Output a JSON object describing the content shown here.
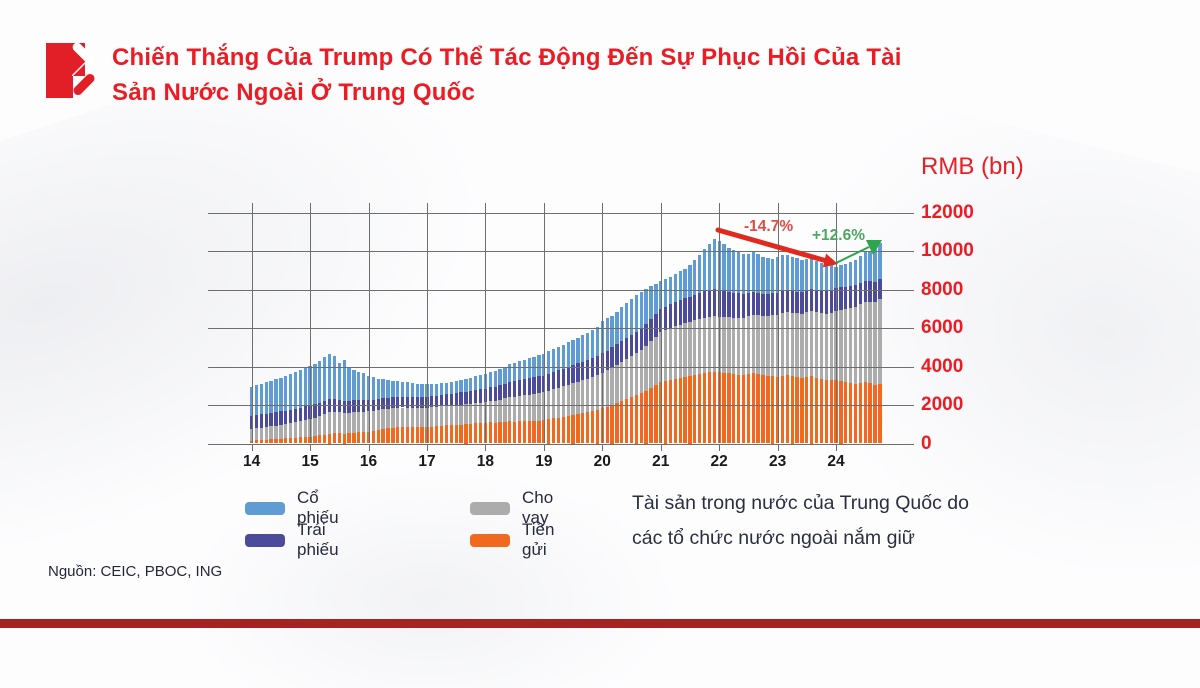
{
  "header": {
    "title_line1": "Chiến Thắng Của Trump Có Thể Tác Động Đến Sự Phục Hồi Của Tài",
    "title_line2": "Sản Nước Ngoài Ở Trung Quốc"
  },
  "colors": {
    "title_red": "#EC1C24",
    "axis_label_red": "#EC1C24",
    "stocks_blue": "#5E9CD3",
    "bonds_purple": "#4B4A9B",
    "loans_gray": "#ACACAC",
    "deposits_orange": "#F1691F",
    "decline_arrow": "#E02A1E",
    "rise_arrow": "#2FA44D",
    "footer_red": "#A32422"
  },
  "chart_data": {
    "type": "bar",
    "stacked": true,
    "title": "RMB (bn)",
    "ylabel": "RMB (bn)",
    "xlabel": "",
    "ylim": [
      0,
      12000
    ],
    "grid": true,
    "y_ticks": [
      0,
      2000,
      4000,
      6000,
      8000,
      10000,
      12000
    ],
    "x_tick_labels": [
      "14",
      "15",
      "16",
      "17",
      "18",
      "19",
      "20",
      "21",
      "22",
      "23",
      "24"
    ],
    "frequency": "monthly",
    "period_start": "2014-01",
    "period_end": "2024-10",
    "annotations": {
      "decline_label": "-14.7%",
      "rise_label": "+12.6%"
    },
    "series": [
      {
        "name": "Tiền gửi",
        "color": "#F1691F",
        "values": [
          150,
          165,
          180,
          200,
          215,
          230,
          245,
          260,
          280,
          300,
          320,
          340,
          360,
          390,
          420,
          460,
          500,
          520,
          540,
          500,
          530,
          560,
          580,
          600,
          620,
          650,
          700,
          740,
          780,
          820,
          840,
          860,
          850,
          840,
          850,
          860,
          870,
          880,
          900,
          920,
          940,
          950,
          960,
          980,
          1000,
          1020,
          1040,
          1060,
          1080,
          1100,
          1090,
          1110,
          1130,
          1150,
          1140,
          1160,
          1170,
          1160,
          1180,
          1190,
          1200,
          1250,
          1300,
          1350,
          1400,
          1450,
          1500,
          1550,
          1600,
          1650,
          1700,
          1750,
          1820,
          1900,
          2000,
          2100,
          2200,
          2300,
          2400,
          2500,
          2600,
          2750,
          2900,
          3050,
          3200,
          3250,
          3300,
          3350,
          3400,
          3450,
          3500,
          3550,
          3600,
          3650,
          3700,
          3740,
          3720,
          3680,
          3650,
          3600,
          3580,
          3550,
          3600,
          3650,
          3600,
          3550,
          3520,
          3500,
          3480,
          3520,
          3550,
          3500,
          3450,
          3400,
          3450,
          3500,
          3420,
          3350,
          3300,
          3280,
          3300,
          3250,
          3200,
          3150,
          3100,
          3150,
          3200,
          3150,
          3050,
          3100
        ]
      },
      {
        "name": "Cho vay",
        "color": "#ACACAC",
        "values": [
          600,
          620,
          640,
          660,
          680,
          700,
          720,
          740,
          770,
          800,
          840,
          880,
          900,
          950,
          1000,
          1070,
          1150,
          1120,
          1100,
          1080,
          1070,
          1060,
          1050,
          1050,
          1050,
          1040,
          1040,
          1030,
          1030,
          1020,
          1020,
          1010,
          1010,
          1000,
          1000,
          1000,
          1000,
          1000,
          1010,
          1010,
          1020,
          1020,
          1030,
          1030,
          1040,
          1040,
          1050,
          1050,
          1060,
          1090,
          1130,
          1170,
          1210,
          1250,
          1290,
          1320,
          1350,
          1380,
          1400,
          1420,
          1450,
          1480,
          1510,
          1540,
          1570,
          1600,
          1630,
          1660,
          1690,
          1720,
          1760,
          1800,
          1850,
          1900,
          1950,
          2000,
          2050,
          2100,
          2150,
          2200,
          2250,
          2320,
          2400,
          2500,
          2600,
          2650,
          2700,
          2750,
          2780,
          2800,
          2820,
          2840,
          2860,
          2880,
          2880,
          2880,
          2860,
          2880,
          2900,
          2920,
          2950,
          2980,
          3000,
          3020,
          3050,
          3080,
          3100,
          3150,
          3200,
          3250,
          3280,
          3300,
          3320,
          3350,
          3380,
          3400,
          3420,
          3430,
          3450,
          3500,
          3600,
          3700,
          3800,
          3900,
          4000,
          4100,
          4150,
          4200,
          4300,
          4400
        ]
      },
      {
        "name": "Trái phiếu",
        "color": "#4B4A9B",
        "values": [
          690,
          690,
          695,
          695,
          700,
          700,
          700,
          705,
          705,
          710,
          710,
          710,
          700,
          690,
          680,
          670,
          660,
          650,
          645,
          640,
          630,
          620,
          610,
          600,
          595,
          590,
          585,
          580,
          575,
          570,
          568,
          566,
          564,
          562,
          560,
          560,
          565,
          570,
          580,
          590,
          600,
          615,
          630,
          645,
          660,
          675,
          690,
          700,
          710,
          725,
          740,
          755,
          770,
          785,
          800,
          815,
          830,
          845,
          860,
          875,
          880,
          890,
          900,
          910,
          920,
          930,
          940,
          950,
          960,
          975,
          990,
          1000,
          1010,
          1025,
          1040,
          1055,
          1070,
          1085,
          1100,
          1115,
          1130,
          1150,
          1170,
          1180,
          1190,
          1210,
          1230,
          1250,
          1270,
          1290,
          1310,
          1330,
          1350,
          1370,
          1390,
          1400,
          1390,
          1360,
          1330,
          1300,
          1270,
          1240,
          1210,
          1190,
          1170,
          1160,
          1150,
          1150,
          1140,
          1130,
          1120,
          1110,
          1105,
          1100,
          1110,
          1120,
          1130,
          1140,
          1160,
          1180,
          1190,
          1170,
          1150,
          1130,
          1110,
          1090,
          1080,
          1070,
          1060,
          1050
        ]
      },
      {
        "name": "Cổ phiếu",
        "color": "#5E9CD3",
        "values": [
          1500,
          1540,
          1580,
          1620,
          1660,
          1700,
          1740,
          1790,
          1840,
          1890,
          1940,
          1980,
          2050,
          2120,
          2200,
          2280,
          2350,
          2280,
          1900,
          2100,
          1750,
          1600,
          1500,
          1400,
          1250,
          1150,
          1050,
          980,
          920,
          860,
          820,
          780,
          750,
          720,
          700,
          680,
          650,
          630,
          620,
          610,
          600,
          610,
          620,
          640,
          660,
          690,
          720,
          750,
          780,
          800,
          830,
          860,
          890,
          920,
          950,
          980,
          1010,
          1040,
          1070,
          1100,
          1130,
          1160,
          1190,
          1220,
          1250,
          1280,
          1310,
          1340,
          1380,
          1420,
          1460,
          1500,
          1700,
          1720,
          1650,
          1700,
          1750,
          1800,
          1850,
          1900,
          1880,
          1800,
          1700,
          1550,
          1450,
          1430,
          1420,
          1450,
          1500,
          1550,
          1650,
          1800,
          2000,
          2200,
          2400,
          2600,
          2550,
          2450,
          2300,
          2250,
          2200,
          2100,
          2050,
          2150,
          2050,
          1900,
          1850,
          1800,
          1850,
          1900,
          1850,
          1800,
          1750,
          1700,
          1650,
          1600,
          1500,
          1450,
          1400,
          1380,
          1100,
          1150,
          1200,
          1250,
          1300,
          1400,
          1500,
          1600,
          1700,
          1850
        ]
      }
    ]
  },
  "legend": {
    "items": [
      {
        "label": "Cổ phiếu",
        "color": "#5E9CD3"
      },
      {
        "label": "Trái phiếu",
        "color": "#4B4A9B"
      },
      {
        "label": "Cho vay",
        "color": "#ACACAC"
      },
      {
        "label": "Tiền gửi",
        "color": "#F1691F"
      }
    ]
  },
  "caption": {
    "line1": "Tài sản trong nước của Trung Quốc do",
    "line2": "các tổ chức nước ngoài nắm giữ"
  },
  "source": {
    "text": "Nguồn: CEIC, PBOC, ING"
  }
}
